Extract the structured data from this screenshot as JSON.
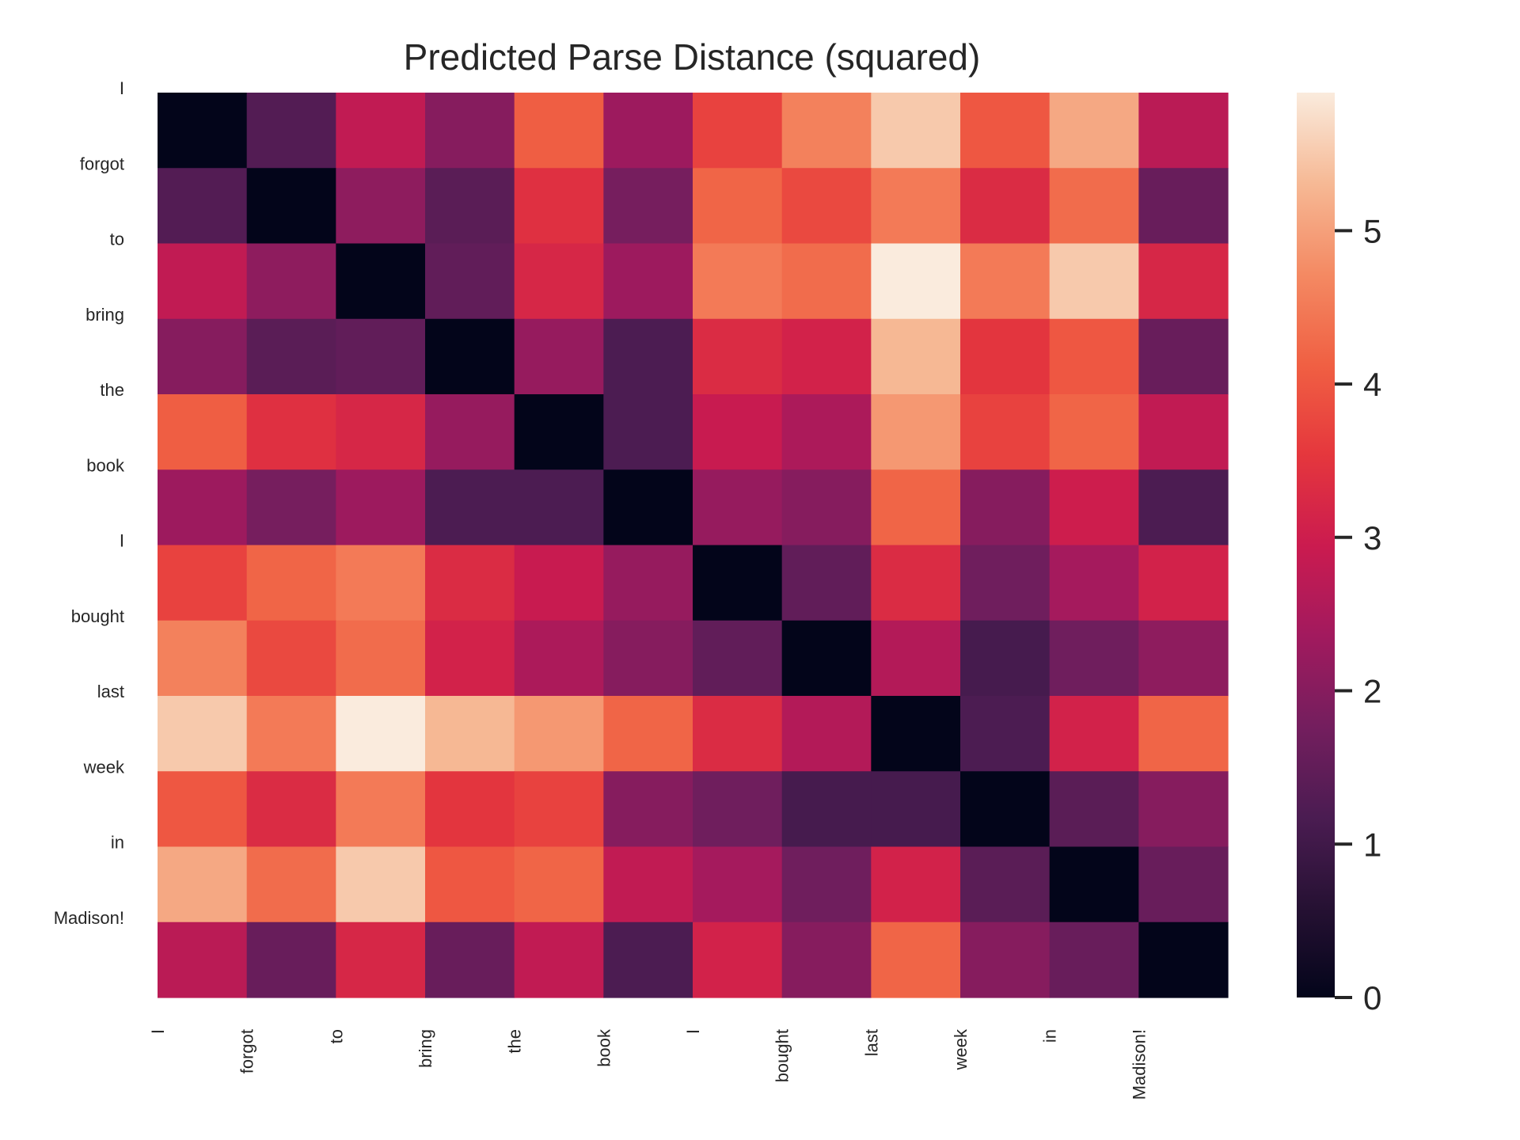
{
  "chart_data": {
    "type": "heatmap",
    "title": "Predicted Parse Distance (squared)",
    "row_labels": [
      "I",
      "forgot",
      "to",
      "bring",
      "the",
      "book",
      "I",
      "bought",
      "last",
      "week",
      "in",
      "Madison!"
    ],
    "col_labels": [
      "I",
      "forgot",
      "to",
      "bring",
      "the",
      "book",
      "I",
      "bought",
      "last",
      "week",
      "in",
      "Madison!"
    ],
    "values": [
      [
        0.0,
        1.3,
        2.8,
        2.0,
        4.1,
        2.3,
        3.7,
        4.6,
        5.5,
        4.0,
        5.1,
        2.7
      ],
      [
        1.3,
        0.0,
        2.1,
        1.4,
        3.4,
        1.8,
        4.2,
        3.8,
        4.5,
        3.3,
        4.3,
        1.6
      ],
      [
        2.8,
        2.1,
        0.0,
        1.5,
        3.2,
        2.3,
        4.5,
        4.3,
        5.9,
        4.5,
        5.5,
        3.2
      ],
      [
        2.0,
        1.4,
        1.5,
        0.0,
        2.2,
        1.2,
        3.3,
        3.1,
        5.3,
        3.5,
        4.0,
        1.6
      ],
      [
        4.1,
        3.4,
        3.2,
        2.2,
        0.0,
        1.2,
        2.9,
        2.5,
        4.9,
        3.7,
        4.2,
        2.8
      ],
      [
        2.3,
        1.8,
        2.3,
        1.2,
        1.2,
        0.0,
        2.2,
        2.0,
        4.2,
        2.0,
        3.0,
        1.2
      ],
      [
        3.7,
        4.2,
        4.5,
        3.3,
        2.9,
        2.2,
        0.0,
        1.5,
        3.3,
        1.7,
        2.4,
        3.1
      ],
      [
        4.6,
        3.8,
        4.3,
        3.1,
        2.5,
        2.0,
        1.5,
        0.0,
        2.6,
        1.1,
        1.7,
        2.1
      ],
      [
        5.5,
        4.5,
        5.9,
        5.3,
        4.9,
        4.2,
        3.3,
        2.6,
        0.0,
        1.2,
        3.1,
        4.2
      ],
      [
        4.0,
        3.3,
        4.5,
        3.5,
        3.7,
        2.0,
        1.7,
        1.1,
        1.1,
        0.0,
        1.4,
        2.0
      ],
      [
        5.1,
        4.3,
        5.5,
        4.0,
        4.2,
        2.8,
        2.4,
        1.7,
        3.1,
        1.4,
        0.0,
        1.6
      ],
      [
        2.7,
        1.6,
        3.2,
        1.6,
        2.8,
        1.2,
        3.1,
        2.0,
        4.2,
        2.0,
        1.6,
        0.0
      ]
    ],
    "colorbar": {
      "min": 0,
      "max": 5.9,
      "ticks": [
        0,
        1,
        2,
        3,
        4,
        5
      ],
      "tick_labels": [
        "0",
        "1",
        "2",
        "3",
        "4",
        "5"
      ]
    },
    "colormap": "rocket",
    "grid": false
  }
}
